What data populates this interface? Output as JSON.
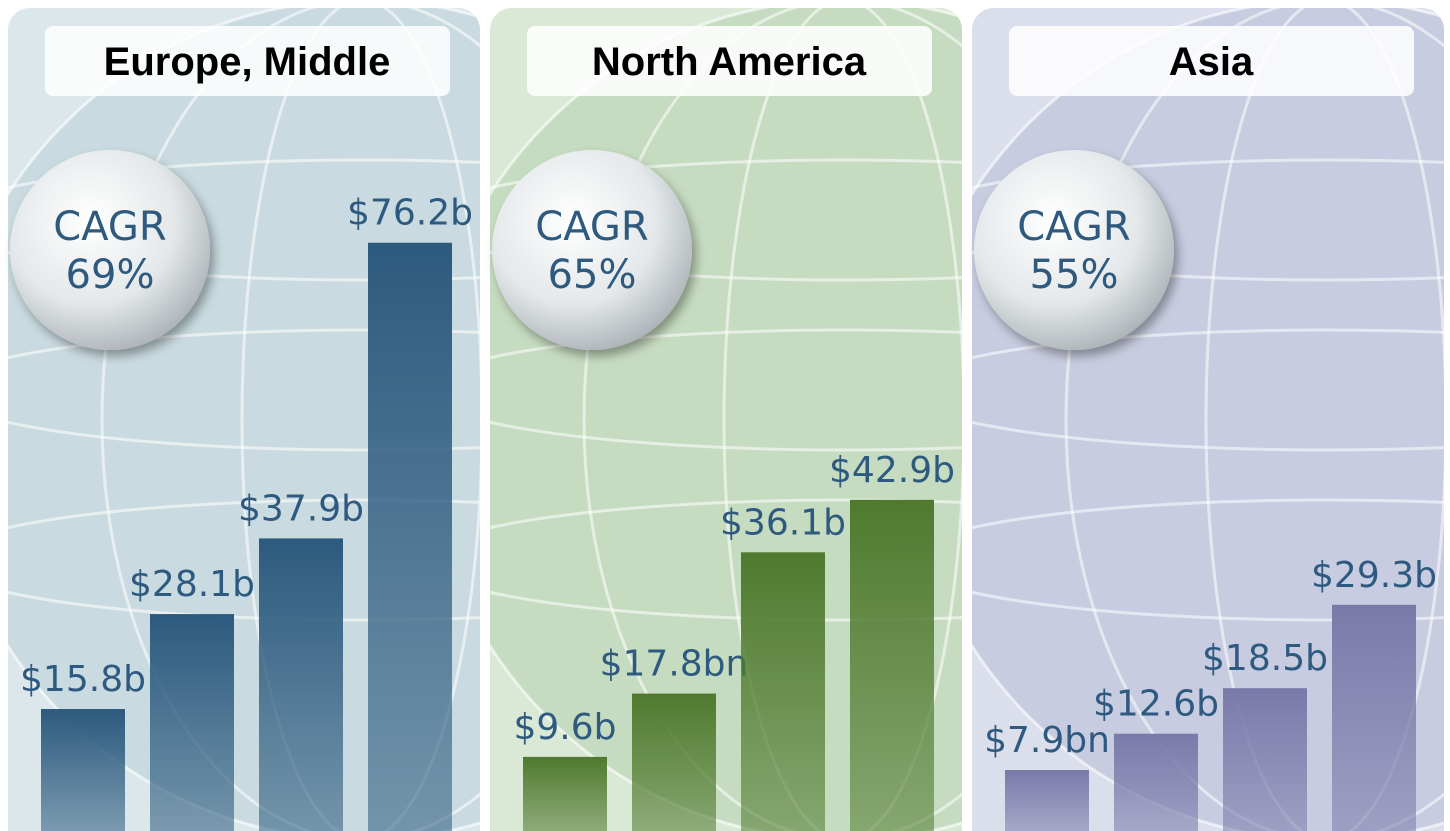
{
  "chart_data": [
    {
      "type": "bar",
      "title": "Europe, Middle",
      "annotation": [
        "CAGR",
        "69%"
      ],
      "values": [
        15.8,
        28.1,
        37.9,
        76.2
      ],
      "value_labels": [
        "$15.8b",
        "$28.1b",
        "$37.9b",
        "$76.2b"
      ],
      "color": "#2c5a7e",
      "background": "#c9dbe0"
    },
    {
      "type": "bar",
      "title": "North America",
      "annotation": [
        "CAGR",
        "65%"
      ],
      "values": [
        9.6,
        17.8,
        36.1,
        42.9
      ],
      "value_labels": [
        "$9.6b",
        "$17.8bn",
        "$36.1b",
        "$42.9b"
      ],
      "color": "#4f7a2e",
      "background": "#c6dcc0"
    },
    {
      "type": "bar",
      "title": "Asia",
      "annotation": [
        "CAGR",
        "55%"
      ],
      "values": [
        7.9,
        12.6,
        18.5,
        29.3
      ],
      "value_labels": [
        "$7.9bn",
        "$12.6b",
        "$18.5b",
        "$29.3b"
      ],
      "color": "#7a7aaa",
      "background": "#c8cce0"
    }
  ]
}
